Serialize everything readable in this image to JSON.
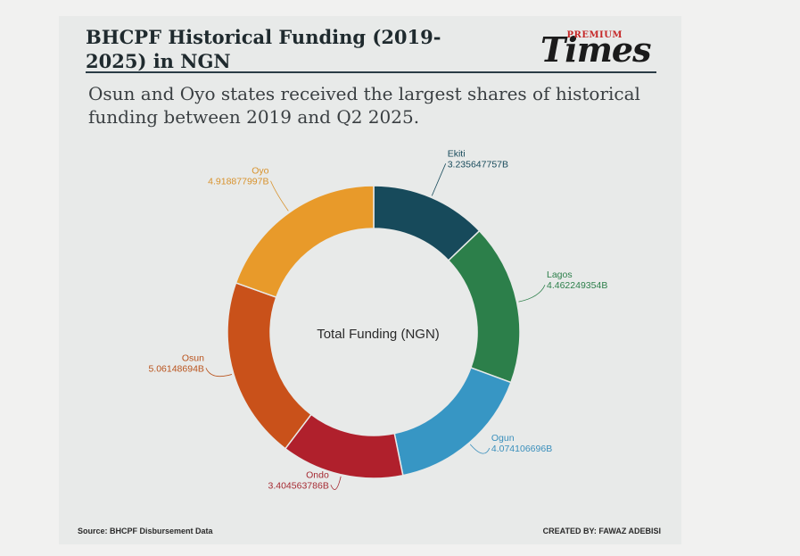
{
  "header": {
    "title": "BHCPF Historical Funding (2019-2025) in NGN",
    "subtitle": "Osun and Oyo states received the largest shares of historical funding between 2019 and Q2 2025.",
    "logo_small": "PREMIUM",
    "logo_main": "Times"
  },
  "footer": {
    "source": "Source: BHCPF Disbursement Data",
    "credit": "CREATED BY: FAWAZ ADEBISI"
  },
  "chart_data": {
    "type": "pie",
    "variant": "donut",
    "center_label": "Total Funding (NGN)",
    "categories": [
      "Ekiti",
      "Lagos",
      "Ogun",
      "Ondo",
      "Osun",
      "Oyo"
    ],
    "values": [
      3.235647757,
      4.462249354,
      4.074106696,
      3.404563786,
      5.06148694,
      4.918877997
    ],
    "value_labels": [
      "3.235647757B",
      "4.462249354B",
      "4.074106696B",
      "3.404563786B",
      "5.06148694B",
      "4.918877997B"
    ],
    "colors": [
      "#174a5b",
      "#2c7f4a",
      "#3796c4",
      "#b0202c",
      "#c9511a",
      "#e89a2a"
    ],
    "label_colors": [
      "#174a5b",
      "#2c7f4a",
      "#3a8fbc",
      "#a52a32",
      "#b9531c",
      "#d8922c"
    ]
  }
}
